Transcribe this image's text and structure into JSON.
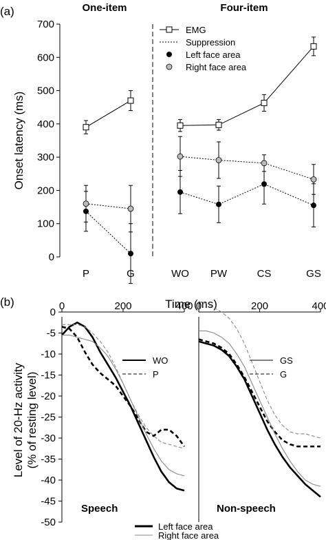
{
  "chart_data": [
    {
      "type": "line",
      "panel_label": "(a)",
      "ylabel": "Onset latency (ms)",
      "ylim": [
        0,
        700
      ],
      "yticks": [
        0,
        100,
        200,
        300,
        400,
        500,
        600,
        700
      ],
      "groups": [
        {
          "title": "One-item",
          "categories": [
            "P",
            "G"
          ]
        },
        {
          "title": "Four-item",
          "categories": [
            "WO",
            "PW",
            "CS",
            "GS"
          ]
        }
      ],
      "legend": {
        "placement": "top-right",
        "entries": [
          "EMG",
          "Suppression",
          "Left face area",
          "Right face area"
        ]
      },
      "series": [
        {
          "name": "EMG",
          "marker": "square",
          "groups": [
            {
              "values": [
                390,
                470
              ],
              "errors": [
                20,
                30
              ]
            },
            {
              "values": [
                395,
                397,
                463,
                633
              ],
              "errors": [
                18,
                16,
                25,
                28
              ]
            }
          ]
        },
        {
          "name": "Left face area",
          "marker": "filled-circle",
          "line": "dotted",
          "groups": [
            {
              "values": [
                137,
                10
              ],
              "errors": [
                60,
                90
              ]
            },
            {
              "values": [
                195,
                158,
                219,
                155
              ],
              "errors": [
                65,
                55,
                60,
                65
              ]
            }
          ]
        },
        {
          "name": "Right face area",
          "marker": "grey-circle",
          "line": "dotted",
          "groups": [
            {
              "values": [
                160,
                145
              ],
              "errors": [
                55,
                70
              ]
            },
            {
              "values": [
                302,
                291,
                282,
                233
              ],
              "errors": [
                60,
                55,
                25,
                45
              ]
            }
          ]
        }
      ]
    },
    {
      "type": "line",
      "panel_label": "(b)",
      "xlabel": "Time (ms)",
      "ylabel": "Level of 20-Hz activity (% of resting level)",
      "xlim": [
        0,
        400
      ],
      "xticks": [
        0,
        200,
        400
      ],
      "ylim": [
        -50,
        0
      ],
      "yticks": [
        0,
        -5,
        -10,
        -15,
        -20,
        -25,
        -30,
        -35,
        -40,
        -45,
        -50
      ],
      "legend": {
        "placement": "bottom",
        "entries": [
          {
            "label": "Left face area",
            "style": "thick-black"
          },
          {
            "label": "Right face area",
            "style": "thin-grey"
          }
        ]
      },
      "panels": [
        {
          "title": "Speech",
          "legend": [
            {
              "label": "WO",
              "style": "solid"
            },
            {
              "label": "P",
              "style": "dashed"
            }
          ],
          "series": [
            {
              "condition": "WO",
              "area": "Left face area",
              "x": [
                0,
                25,
                50,
                75,
                100,
                125,
                150,
                175,
                200,
                225,
                250,
                275,
                300,
                325,
                350,
                375,
                400
              ],
              "y": [
                -5.5,
                -3.5,
                -2.5,
                -3.5,
                -6,
                -9.5,
                -12.5,
                -15.5,
                -19,
                -22.5,
                -26.5,
                -30.5,
                -34.5,
                -38,
                -40.5,
                -42,
                -42.5
              ]
            },
            {
              "condition": "P",
              "area": "Left face area",
              "x": [
                0,
                25,
                50,
                75,
                100,
                125,
                150,
                175,
                200,
                225,
                250,
                275,
                300,
                325,
                350,
                375,
                400
              ],
              "y": [
                -3.5,
                -4,
                -6,
                -9.5,
                -12.5,
                -14.5,
                -16,
                -17.5,
                -20,
                -22.5,
                -25.5,
                -28.5,
                -29.5,
                -28,
                -28,
                -29.5,
                -32
              ]
            },
            {
              "condition": "WO",
              "area": "Right face area",
              "x": [
                0,
                25,
                50,
                75,
                100,
                125,
                150,
                175,
                200,
                225,
                250,
                275,
                300,
                325,
                350,
                375,
                400
              ],
              "y": [
                -5.5,
                -5.5,
                -6,
                -6.5,
                -7,
                -8.5,
                -10.5,
                -13.5,
                -17,
                -21,
                -25,
                -29,
                -32.5,
                -35.5,
                -37.5,
                -38.5,
                -39
              ]
            },
            {
              "condition": "P",
              "area": "Right face area",
              "x": [
                0,
                25,
                50,
                75,
                100,
                125,
                150,
                175,
                200,
                225,
                250,
                275,
                300,
                325,
                350,
                375,
                400
              ],
              "y": [
                -3,
                -3,
                -3,
                -3.5,
                -5,
                -7,
                -9.5,
                -13,
                -17,
                -21,
                -24.5,
                -27.5,
                -29.5,
                -31,
                -31.5,
                -32,
                -32.5
              ]
            }
          ]
        },
        {
          "title": "Non-speech",
          "legend": [
            {
              "label": "GS",
              "style": "solid"
            },
            {
              "label": "G",
              "style": "dashed"
            }
          ],
          "series": [
            {
              "condition": "GS",
              "area": "Left face area",
              "x": [
                0,
                25,
                50,
                75,
                100,
                125,
                150,
                175,
                200,
                225,
                250,
                275,
                300,
                325,
                350,
                375,
                400
              ],
              "y": [
                -7,
                -7.5,
                -8,
                -9,
                -10.5,
                -13,
                -16,
                -20,
                -24,
                -28,
                -31.5,
                -34.5,
                -37,
                -39,
                -41,
                -42.5,
                -44
              ]
            },
            {
              "condition": "G",
              "area": "Left face area",
              "x": [
                0,
                25,
                50,
                75,
                100,
                125,
                150,
                175,
                200,
                225,
                250,
                275,
                300,
                325,
                350,
                375,
                400
              ],
              "y": [
                -6.5,
                -7,
                -7.5,
                -8.5,
                -10,
                -12.5,
                -15.5,
                -19,
                -22.5,
                -26,
                -28.5,
                -30.5,
                -31.5,
                -32,
                -32,
                -32,
                -32
              ]
            },
            {
              "condition": "GS",
              "area": "Right face area",
              "x": [
                0,
                25,
                50,
                75,
                100,
                125,
                150,
                175,
                200,
                225,
                250,
                275,
                300,
                325,
                350,
                375,
                400
              ],
              "y": [
                -4.5,
                -4.5,
                -5,
                -6,
                -7.5,
                -10,
                -13,
                -17,
                -21,
                -25,
                -29,
                -32.5,
                -35.5,
                -38,
                -40,
                -41,
                -41.5
              ]
            },
            {
              "condition": "G",
              "area": "Right face area",
              "x": [
                0,
                25,
                50,
                75,
                100,
                125,
                150,
                175,
                200,
                225,
                250,
                275,
                300,
                325,
                350,
                375,
                400
              ],
              "y": [
                2.5,
                2,
                1,
                0,
                -1.5,
                -4,
                -7.5,
                -12,
                -16.5,
                -21,
                -24.5,
                -27,
                -28.5,
                -29,
                -29,
                -29.5,
                -30
              ]
            }
          ]
        }
      ]
    }
  ]
}
